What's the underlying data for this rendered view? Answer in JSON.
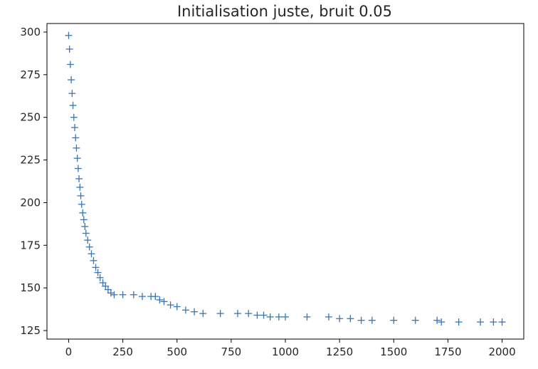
{
  "chart_data": {
    "type": "scatter",
    "title": "Initialisation juste, bruit 0.05",
    "xlabel": "",
    "ylabel": "",
    "marker": "+",
    "xlim": [
      -100,
      2100
    ],
    "ylim": [
      120,
      305
    ],
    "x_ticks": [
      0,
      250,
      500,
      750,
      1000,
      1250,
      1500,
      1750,
      2000
    ],
    "y_ticks": [
      125,
      150,
      175,
      200,
      225,
      250,
      275,
      300
    ],
    "grid": false,
    "legend": "none",
    "series": [
      {
        "color": "#3a76b3",
        "points": [
          [
            0,
            298
          ],
          [
            4,
            290
          ],
          [
            8,
            281
          ],
          [
            12,
            272
          ],
          [
            16,
            264
          ],
          [
            20,
            257
          ],
          [
            24,
            250
          ],
          [
            28,
            244
          ],
          [
            32,
            238
          ],
          [
            36,
            232
          ],
          [
            40,
            226
          ],
          [
            44,
            220
          ],
          [
            48,
            214
          ],
          [
            52,
            209
          ],
          [
            56,
            204
          ],
          [
            60,
            199
          ],
          [
            65,
            194
          ],
          [
            70,
            190
          ],
          [
            75,
            186
          ],
          [
            80,
            182
          ],
          [
            88,
            178
          ],
          [
            96,
            174
          ],
          [
            105,
            170
          ],
          [
            115,
            166
          ],
          [
            125,
            162
          ],
          [
            135,
            159
          ],
          [
            145,
            156
          ],
          [
            158,
            153
          ],
          [
            170,
            151
          ],
          [
            182,
            149
          ],
          [
            195,
            147
          ],
          [
            210,
            146
          ],
          [
            250,
            146
          ],
          [
            300,
            146
          ],
          [
            340,
            145
          ],
          [
            380,
            145
          ],
          [
            400,
            145
          ],
          [
            420,
            143
          ],
          [
            440,
            142
          ],
          [
            470,
            140
          ],
          [
            500,
            139
          ],
          [
            540,
            137
          ],
          [
            580,
            136
          ],
          [
            620,
            135
          ],
          [
            700,
            135
          ],
          [
            780,
            135
          ],
          [
            830,
            135
          ],
          [
            870,
            134
          ],
          [
            900,
            134
          ],
          [
            930,
            133
          ],
          [
            970,
            133
          ],
          [
            1000,
            133
          ],
          [
            1100,
            133
          ],
          [
            1200,
            133
          ],
          [
            1250,
            132
          ],
          [
            1300,
            132
          ],
          [
            1350,
            131
          ],
          [
            1400,
            131
          ],
          [
            1500,
            131
          ],
          [
            1600,
            131
          ],
          [
            1700,
            131
          ],
          [
            1720,
            130
          ],
          [
            1800,
            130
          ],
          [
            1900,
            130
          ],
          [
            1960,
            130
          ],
          [
            2000,
            130
          ]
        ]
      }
    ]
  }
}
